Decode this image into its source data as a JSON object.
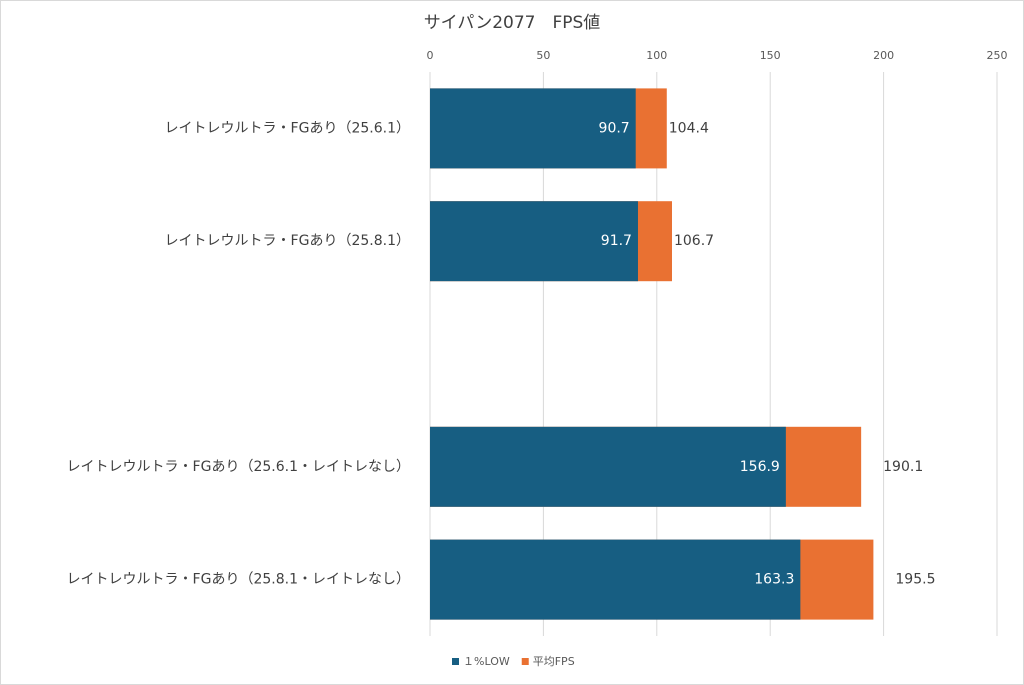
{
  "chart_data": {
    "type": "bar",
    "orientation": "horizontal",
    "title": "サイパン2077　FPS値",
    "categories": [
      "レイトレウルトラ・FGあり（25.6.1）",
      "レイトレウルトラ・FGあり（25.8.1）",
      null,
      "レイトレウルトラ・FGあり（25.6.1・レイトレなし）",
      "レイトレウルトラ・FGあり（25.8.1・レイトレなし）"
    ],
    "series": [
      {
        "name": "１%LOW",
        "color": "#175e82",
        "values": [
          90.7,
          91.7,
          null,
          156.9,
          163.3
        ]
      },
      {
        "name": "平均FPS",
        "color": "#e97132",
        "values": [
          104.4,
          106.7,
          null,
          190.1,
          195.5
        ]
      }
    ],
    "xlim": [
      0,
      250
    ],
    "xticks": [
      0,
      50,
      100,
      150,
      200,
      250
    ],
    "grid": true,
    "legend": "bottom",
    "overlap": true
  }
}
